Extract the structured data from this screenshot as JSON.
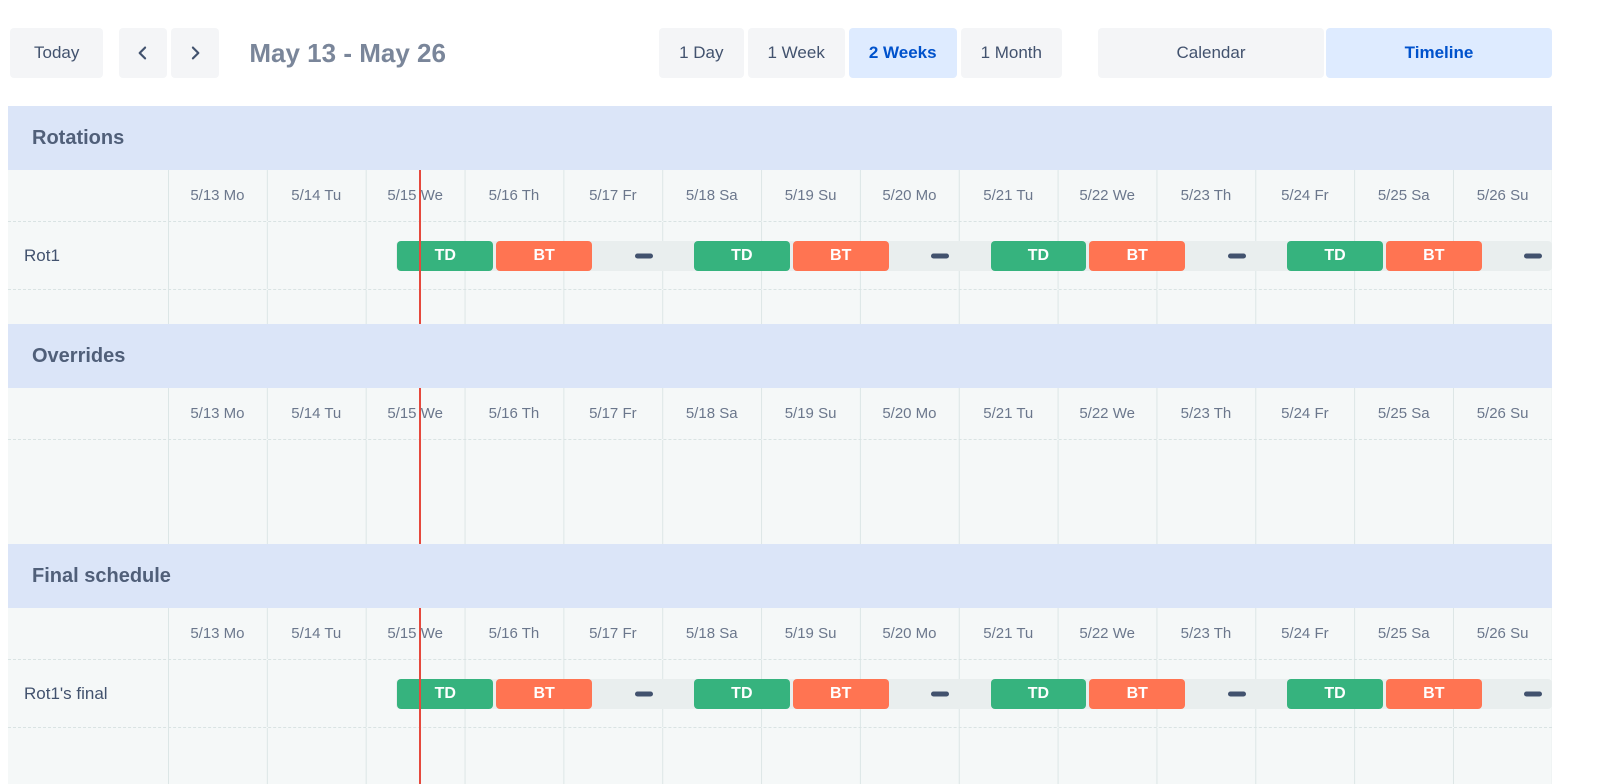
{
  "toolbar": {
    "today_label": "Today",
    "date_range": "May 13 - May 26",
    "view_buttons": [
      {
        "label": "1 Day",
        "active": false
      },
      {
        "label": "1 Week",
        "active": false
      },
      {
        "label": "2 Weeks",
        "active": true
      },
      {
        "label": "1 Month",
        "active": false
      }
    ],
    "mode_buttons": [
      {
        "label": "Calendar",
        "active": false
      },
      {
        "label": "Timeline",
        "active": true
      }
    ]
  },
  "timeline": {
    "days": [
      "5/13 Mo",
      "5/14 Tu",
      "5/15 We",
      "5/16 Th",
      "5/17 Fr",
      "5/18 Sa",
      "5/19 Su",
      "5/20 Mo",
      "5/21 Tu",
      "5/22 We",
      "5/23 Th",
      "5/24 Fr",
      "5/25 Sa",
      "5/26 Su"
    ],
    "total_days": 14,
    "now_marker_day": 2.54,
    "track_start_day": 2.31,
    "shift_bars": [
      {
        "label": "TD",
        "start": 2.31,
        "end": 3.31,
        "type": "primary"
      },
      {
        "label": "BT",
        "start": 3.31,
        "end": 4.31,
        "type": "secondary"
      },
      {
        "label": "TD",
        "start": 5.31,
        "end": 6.31,
        "type": "primary"
      },
      {
        "label": "BT",
        "start": 6.31,
        "end": 7.31,
        "type": "secondary"
      },
      {
        "label": "TD",
        "start": 8.31,
        "end": 9.31,
        "type": "primary"
      },
      {
        "label": "BT",
        "start": 9.31,
        "end": 10.31,
        "type": "secondary"
      },
      {
        "label": "TD",
        "start": 11.31,
        "end": 12.31,
        "type": "primary"
      },
      {
        "label": "BT",
        "start": 12.31,
        "end": 13.31,
        "type": "secondary"
      }
    ],
    "gap_dashes": [
      4.81,
      7.81,
      10.81,
      13.81
    ],
    "sections": [
      {
        "title": "Rotations",
        "rows": [
          {
            "kind": "shifts",
            "label": "Rot1",
            "has_shifts": true
          },
          {
            "kind": "spacer",
            "label": "",
            "has_shifts": false
          }
        ]
      },
      {
        "title": "Overrides",
        "rows": [
          {
            "kind": "empty-lg",
            "label": "",
            "has_shifts": false
          }
        ]
      },
      {
        "title": "Final schedule",
        "rows": [
          {
            "kind": "shifts",
            "label": "Rot1's final",
            "has_shifts": true
          },
          {
            "kind": "spacer-final",
            "label": "",
            "has_shifts": false
          }
        ]
      }
    ],
    "colors": {
      "shift_primary": "#36b37e",
      "shift_secondary": "#ff7452",
      "gap_dash": "#42526e",
      "now_line": "#e5493d",
      "accent": "#0052cc",
      "accent_bg": "#deebff"
    }
  }
}
